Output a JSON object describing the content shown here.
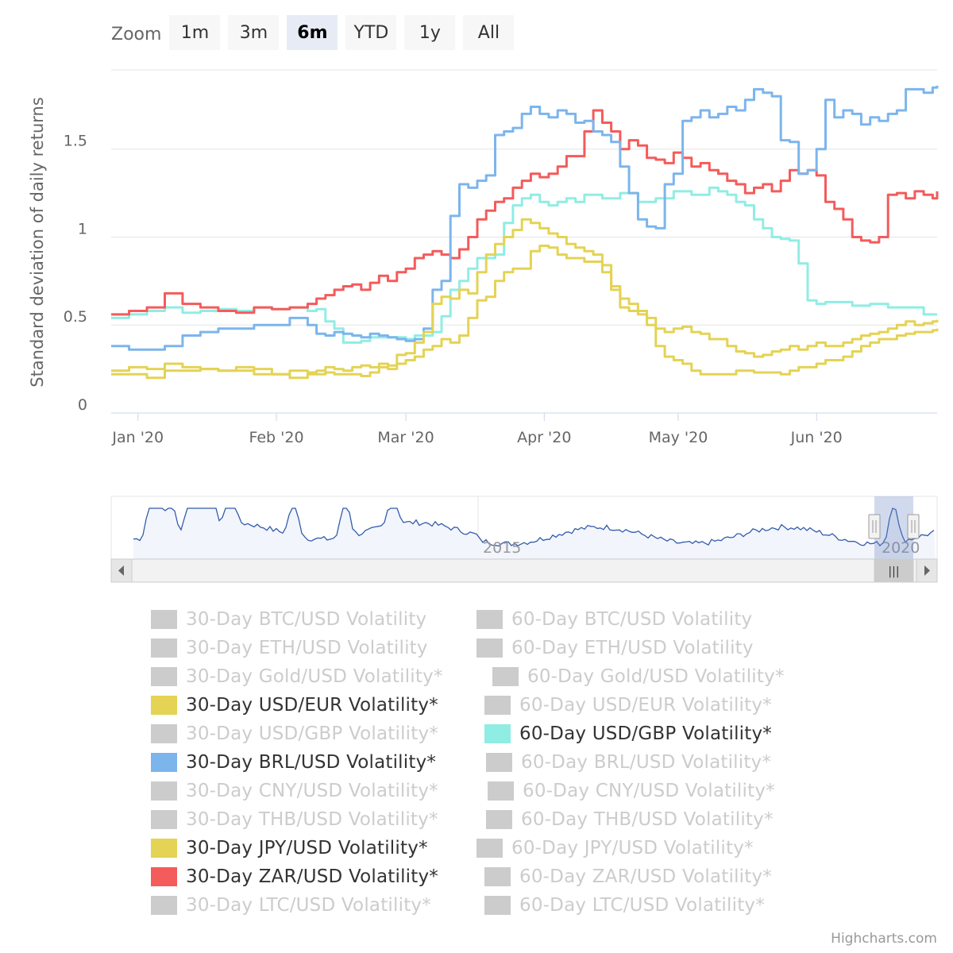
{
  "zoom": {
    "label": "Zoom",
    "buttons": [
      "1m",
      "3m",
      "6m",
      "YTD",
      "1y",
      "All"
    ],
    "selected": "6m"
  },
  "chart_data": {
    "type": "line",
    "ylabel": "Standard deviation of daily returns",
    "ylim": [
      0,
      1.95
    ],
    "yticks": [
      0,
      0.5,
      1,
      1.5
    ],
    "ytick_labels": [
      "0",
      "0.5",
      "1",
      "1.5"
    ],
    "xlim": [
      -6,
      179
    ],
    "xticks": [
      0,
      31,
      60,
      91,
      121,
      152
    ],
    "xtick_labels": [
      "Jan '20",
      "Feb '20",
      "Mar '20",
      "Apr '20",
      "May '20",
      "Jun '20"
    ],
    "series": [
      {
        "name": "60-Day USD/GBP Volatility*",
        "color": "#90ede3",
        "x": [
          -6,
          -2,
          2,
          6,
          10,
          14,
          18,
          22,
          26,
          30,
          34,
          38,
          40,
          42,
          44,
          46,
          48,
          50,
          52,
          56,
          60,
          62,
          66,
          68,
          70,
          72,
          74,
          76,
          78,
          80,
          82,
          84,
          86,
          88,
          90,
          92,
          94,
          96,
          98,
          100,
          104,
          108,
          112,
          116,
          120,
          124,
          128,
          130,
          132,
          134,
          136,
          138,
          140,
          142,
          144,
          146,
          148,
          150,
          152,
          154,
          156,
          160,
          164,
          168,
          172,
          176,
          179
        ],
        "values": [
          0.54,
          0.56,
          0.58,
          0.6,
          0.57,
          0.58,
          0.59,
          0.58,
          0.6,
          0.59,
          0.6,
          0.58,
          0.59,
          0.52,
          0.48,
          0.4,
          0.4,
          0.41,
          0.43,
          0.43,
          0.42,
          0.44,
          0.46,
          0.55,
          0.7,
          0.75,
          0.82,
          0.88,
          0.88,
          0.9,
          1.08,
          1.18,
          1.22,
          1.24,
          1.2,
          1.18,
          1.2,
          1.22,
          1.2,
          1.24,
          1.22,
          1.25,
          1.2,
          1.22,
          1.26,
          1.24,
          1.28,
          1.26,
          1.24,
          1.2,
          1.18,
          1.1,
          1.05,
          1.0,
          0.99,
          0.98,
          0.85,
          0.64,
          0.62,
          0.63,
          0.63,
          0.61,
          0.62,
          0.6,
          0.6,
          0.56,
          0.56
        ]
      },
      {
        "name": "30-Day ZAR/USD Volatility*",
        "color": "#f45b5b",
        "x": [
          -6,
          -2,
          2,
          6,
          10,
          14,
          18,
          22,
          26,
          30,
          34,
          38,
          40,
          42,
          44,
          46,
          48,
          50,
          52,
          54,
          56,
          58,
          60,
          62,
          64,
          66,
          68,
          70,
          72,
          74,
          76,
          78,
          80,
          82,
          84,
          86,
          88,
          90,
          92,
          94,
          96,
          98,
          100,
          102,
          104,
          106,
          108,
          110,
          112,
          114,
          116,
          118,
          120,
          122,
          124,
          126,
          128,
          130,
          132,
          134,
          136,
          138,
          140,
          142,
          144,
          146,
          148,
          150,
          152,
          154,
          156,
          158,
          160,
          162,
          164,
          166,
          168,
          170,
          172,
          174,
          176,
          178,
          179
        ],
        "values": [
          0.56,
          0.58,
          0.6,
          0.68,
          0.62,
          0.6,
          0.58,
          0.57,
          0.6,
          0.59,
          0.6,
          0.62,
          0.65,
          0.67,
          0.7,
          0.72,
          0.73,
          0.7,
          0.74,
          0.78,
          0.75,
          0.8,
          0.82,
          0.88,
          0.9,
          0.92,
          0.9,
          0.88,
          0.93,
          1.0,
          1.1,
          1.15,
          1.2,
          1.22,
          1.28,
          1.32,
          1.36,
          1.34,
          1.36,
          1.4,
          1.46,
          1.46,
          1.6,
          1.72,
          1.65,
          1.6,
          1.5,
          1.55,
          1.52,
          1.45,
          1.44,
          1.42,
          1.48,
          1.45,
          1.4,
          1.42,
          1.38,
          1.36,
          1.32,
          1.3,
          1.25,
          1.28,
          1.3,
          1.26,
          1.32,
          1.38,
          1.36,
          1.38,
          1.35,
          1.2,
          1.16,
          1.1,
          1.0,
          0.98,
          0.97,
          1.0,
          1.24,
          1.25,
          1.22,
          1.26,
          1.24,
          1.22,
          1.26
        ]
      },
      {
        "name": "30-Day BRL/USD Volatility*",
        "color": "#7cb5ec",
        "x": [
          -6,
          -2,
          2,
          6,
          10,
          14,
          18,
          22,
          26,
          30,
          34,
          38,
          40,
          42,
          44,
          46,
          48,
          50,
          52,
          54,
          56,
          58,
          60,
          62,
          64,
          66,
          68,
          70,
          72,
          74,
          76,
          78,
          80,
          82,
          84,
          86,
          88,
          90,
          92,
          94,
          96,
          98,
          100,
          102,
          104,
          106,
          108,
          110,
          112,
          114,
          116,
          118,
          120,
          122,
          124,
          126,
          128,
          130,
          132,
          134,
          136,
          138,
          140,
          142,
          144,
          146,
          148,
          150,
          152,
          154,
          156,
          158,
          160,
          162,
          164,
          166,
          168,
          170,
          172,
          174,
          176,
          178,
          179
        ],
        "values": [
          0.38,
          0.36,
          0.36,
          0.38,
          0.44,
          0.46,
          0.48,
          0.48,
          0.5,
          0.5,
          0.54,
          0.5,
          0.45,
          0.44,
          0.46,
          0.45,
          0.44,
          0.43,
          0.45,
          0.44,
          0.43,
          0.42,
          0.41,
          0.42,
          0.48,
          0.7,
          0.75,
          1.12,
          1.3,
          1.28,
          1.32,
          1.35,
          1.58,
          1.6,
          1.62,
          1.7,
          1.74,
          1.7,
          1.68,
          1.72,
          1.7,
          1.65,
          1.66,
          1.6,
          1.58,
          1.54,
          1.4,
          1.25,
          1.1,
          1.06,
          1.05,
          1.3,
          1.36,
          1.66,
          1.68,
          1.72,
          1.68,
          1.7,
          1.74,
          1.72,
          1.78,
          1.84,
          1.82,
          1.8,
          1.55,
          1.54,
          1.36,
          1.38,
          1.5,
          1.78,
          1.68,
          1.72,
          1.7,
          1.64,
          1.68,
          1.66,
          1.7,
          1.72,
          1.84,
          1.84,
          1.82,
          1.85,
          1.86
        ]
      },
      {
        "name": "30-Day USD/EUR Volatility*",
        "color": "#e4d354",
        "x": [
          -6,
          -2,
          2,
          6,
          10,
          14,
          18,
          22,
          26,
          30,
          34,
          38,
          40,
          42,
          44,
          46,
          48,
          50,
          52,
          54,
          56,
          58,
          60,
          62,
          64,
          66,
          68,
          70,
          72,
          74,
          76,
          78,
          80,
          82,
          84,
          86,
          88,
          90,
          92,
          94,
          96,
          98,
          100,
          102,
          104,
          106,
          108,
          110,
          112,
          114,
          116,
          118,
          120,
          122,
          124,
          126,
          128,
          130,
          132,
          134,
          136,
          138,
          140,
          142,
          144,
          146,
          148,
          150,
          152,
          154,
          156,
          158,
          160,
          162,
          164,
          166,
          168,
          170,
          172,
          174,
          176,
          178,
          179
        ],
        "values": [
          0.24,
          0.26,
          0.25,
          0.28,
          0.26,
          0.25,
          0.24,
          0.26,
          0.22,
          0.22,
          0.24,
          0.23,
          0.24,
          0.26,
          0.25,
          0.24,
          0.26,
          0.27,
          0.26,
          0.28,
          0.27,
          0.33,
          0.34,
          0.4,
          0.46,
          0.62,
          0.66,
          0.65,
          0.7,
          0.68,
          0.8,
          0.9,
          0.96,
          1.0,
          1.04,
          1.1,
          1.08,
          1.05,
          1.02,
          1.0,
          0.96,
          0.94,
          0.92,
          0.9,
          0.84,
          0.72,
          0.65,
          0.62,
          0.58,
          0.54,
          0.48,
          0.46,
          0.48,
          0.49,
          0.46,
          0.45,
          0.42,
          0.42,
          0.38,
          0.35,
          0.34,
          0.32,
          0.33,
          0.35,
          0.36,
          0.38,
          0.36,
          0.38,
          0.4,
          0.38,
          0.38,
          0.4,
          0.42,
          0.44,
          0.45,
          0.46,
          0.48,
          0.5,
          0.52,
          0.5,
          0.51,
          0.52,
          0.53
        ]
      },
      {
        "name": "30-Day JPY/USD Volatility*",
        "color": "#e4d354",
        "x": [
          -6,
          -2,
          2,
          6,
          10,
          14,
          18,
          22,
          26,
          30,
          34,
          38,
          40,
          42,
          44,
          46,
          48,
          50,
          52,
          54,
          56,
          58,
          60,
          62,
          64,
          66,
          68,
          70,
          72,
          74,
          76,
          78,
          80,
          82,
          84,
          86,
          88,
          90,
          92,
          94,
          96,
          98,
          100,
          102,
          104,
          106,
          108,
          110,
          112,
          114,
          116,
          118,
          120,
          122,
          124,
          126,
          128,
          130,
          132,
          134,
          136,
          138,
          140,
          142,
          144,
          146,
          148,
          150,
          152,
          154,
          156,
          158,
          160,
          162,
          164,
          166,
          168,
          170,
          172,
          174,
          176,
          178,
          179
        ],
        "values": [
          0.22,
          0.22,
          0.2,
          0.24,
          0.24,
          0.25,
          0.24,
          0.24,
          0.25,
          0.22,
          0.2,
          0.22,
          0.22,
          0.23,
          0.22,
          0.22,
          0.22,
          0.21,
          0.23,
          0.26,
          0.25,
          0.28,
          0.3,
          0.32,
          0.36,
          0.38,
          0.42,
          0.4,
          0.44,
          0.54,
          0.64,
          0.66,
          0.75,
          0.8,
          0.82,
          0.82,
          0.92,
          0.95,
          0.94,
          0.9,
          0.88,
          0.88,
          0.86,
          0.86,
          0.8,
          0.7,
          0.6,
          0.58,
          0.56,
          0.5,
          0.38,
          0.32,
          0.3,
          0.28,
          0.24,
          0.22,
          0.22,
          0.22,
          0.22,
          0.24,
          0.24,
          0.23,
          0.23,
          0.23,
          0.22,
          0.24,
          0.26,
          0.26,
          0.28,
          0.3,
          0.3,
          0.32,
          0.35,
          0.38,
          0.4,
          0.42,
          0.42,
          0.44,
          0.45,
          0.46,
          0.46,
          0.47,
          0.48
        ]
      }
    ]
  },
  "navigator": {
    "year_labels": [
      "2015",
      "2020"
    ],
    "handle_glyph": "|||"
  },
  "legend": [
    {
      "label": "30-Day BTC/USD Volatility",
      "visible": false,
      "color": "#cccccc"
    },
    {
      "label": "60-Day BTC/USD Volatility",
      "visible": false,
      "color": "#cccccc"
    },
    {
      "label": "30-Day ETH/USD Volatility",
      "visible": false,
      "color": "#cccccc"
    },
    {
      "label": "60-Day ETH/USD Volatility",
      "visible": false,
      "color": "#cccccc"
    },
    {
      "label": "30-Day Gold/USD Volatility*",
      "visible": false,
      "color": "#cccccc"
    },
    {
      "label": "60-Day Gold/USD Volatility*",
      "visible": false,
      "color": "#cccccc"
    },
    {
      "label": "30-Day USD/EUR Volatility*",
      "visible": true,
      "color": "#e4d354"
    },
    {
      "label": "60-Day USD/EUR Volatility*",
      "visible": false,
      "color": "#cccccc"
    },
    {
      "label": "30-Day USD/GBP Volatility*",
      "visible": false,
      "color": "#cccccc"
    },
    {
      "label": "60-Day USD/GBP Volatility*",
      "visible": true,
      "color": "#90ede3"
    },
    {
      "label": "30-Day BRL/USD Volatility*",
      "visible": true,
      "color": "#7cb5ec"
    },
    {
      "label": "60-Day BRL/USD Volatility*",
      "visible": false,
      "color": "#cccccc"
    },
    {
      "label": "30-Day CNY/USD Volatility*",
      "visible": false,
      "color": "#cccccc"
    },
    {
      "label": "60-Day CNY/USD Volatility*",
      "visible": false,
      "color": "#cccccc"
    },
    {
      "label": "30-Day THB/USD Volatility*",
      "visible": false,
      "color": "#cccccc"
    },
    {
      "label": "60-Day THB/USD Volatility*",
      "visible": false,
      "color": "#cccccc"
    },
    {
      "label": "30-Day JPY/USD Volatility*",
      "visible": true,
      "color": "#e4d354"
    },
    {
      "label": "60-Day JPY/USD Volatility*",
      "visible": false,
      "color": "#cccccc"
    },
    {
      "label": "30-Day ZAR/USD Volatility*",
      "visible": true,
      "color": "#f45b5b"
    },
    {
      "label": "60-Day ZAR/USD Volatility*",
      "visible": false,
      "color": "#cccccc"
    },
    {
      "label": "30-Day LTC/USD Volatility*",
      "visible": false,
      "color": "#cccccc"
    },
    {
      "label": "60-Day LTC/USD Volatility*",
      "visible": false,
      "color": "#cccccc"
    }
  ],
  "credits": "Highcharts.com"
}
